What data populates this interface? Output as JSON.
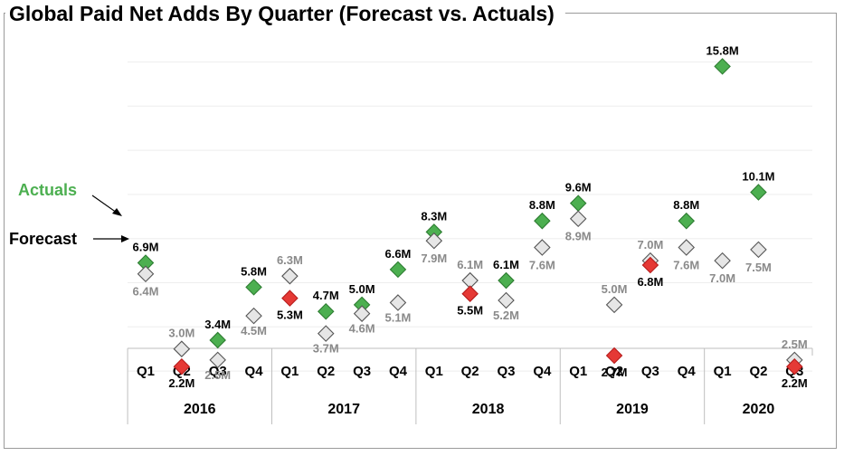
{
  "chart_data": {
    "type": "scatter",
    "title": "Global Paid Net Adds By Quarter (Forecast vs. Actuals)",
    "categories": [
      "Q1",
      "Q2",
      "Q3",
      "Q4",
      "Q1",
      "Q2",
      "Q3",
      "Q4",
      "Q1",
      "Q2",
      "Q3",
      "Q4",
      "Q1",
      "Q2",
      "Q3",
      "Q4",
      "Q1",
      "Q2",
      "Q3"
    ],
    "years": [
      "2016",
      "2017",
      "2018",
      "2019",
      "2020"
    ],
    "series": [
      {
        "name": "Forecast",
        "values": [
          6.4,
          3.0,
          2.5,
          4.5,
          6.3,
          3.7,
          4.6,
          5.1,
          7.9,
          6.1,
          5.2,
          7.6,
          8.9,
          5.0,
          7.0,
          7.6,
          7.0,
          7.5,
          2.5
        ],
        "labels": [
          "6.4M",
          "3.0M",
          "2.5M",
          "4.5M",
          "6.3M",
          "3.7M",
          "4.6M",
          "5.1M",
          "7.9M",
          "6.1M",
          "5.2M",
          "7.6M",
          "8.9M",
          "5.0M",
          "7.0M",
          "7.6M",
          "7.0M",
          "7.5M",
          "2.5M"
        ]
      },
      {
        "name": "Actuals",
        "values": [
          6.9,
          2.2,
          3.4,
          5.8,
          5.3,
          4.7,
          5.0,
          6.6,
          8.3,
          5.5,
          6.1,
          8.8,
          9.6,
          2.7,
          6.8,
          8.8,
          15.8,
          10.1,
          2.2
        ],
        "labels": [
          "6.9M",
          "2.2M",
          "3.4M",
          "5.8M",
          "5.3M",
          "4.7M",
          "5.0M",
          "6.6M",
          "8.3M",
          "5.5M",
          "6.1M",
          "8.8M",
          "9.6M",
          "2.7M",
          "6.8M",
          "8.8M",
          "15.8M",
          "10.1M",
          "2.2M"
        ],
        "beat_forecast": [
          true,
          false,
          true,
          true,
          false,
          true,
          true,
          true,
          true,
          false,
          true,
          true,
          true,
          false,
          false,
          true,
          true,
          true,
          false
        ]
      }
    ],
    "legend": {
      "actuals_label": "Actuals",
      "forecast_label": "Forecast"
    },
    "colors": {
      "beat": "#4caf50",
      "miss": "#e53935",
      "forecast_fill": "#e6e6e6",
      "forecast_label": "#8a8a8a",
      "actual_label": "#000000",
      "actuals_legend": "#4caf50",
      "gridline": "#eeeeee"
    },
    "xlabel": "",
    "ylabel": "",
    "ylim": [
      0,
      17
    ]
  }
}
